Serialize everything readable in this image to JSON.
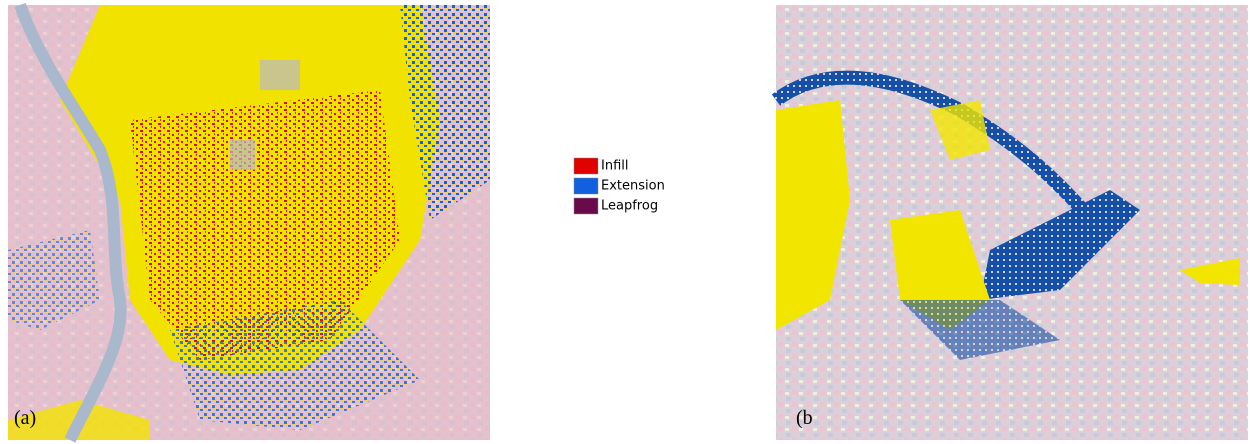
{
  "panels": [
    {
      "label": "(a)"
    },
    {
      "label": "(b"
    }
  ],
  "legend": [
    {
      "name": "Infill",
      "color": "#e00000"
    },
    {
      "name": "Extension",
      "color": "#1060e0"
    },
    {
      "name": "Leapfrog",
      "color": "#6a0a4a"
    }
  ]
}
